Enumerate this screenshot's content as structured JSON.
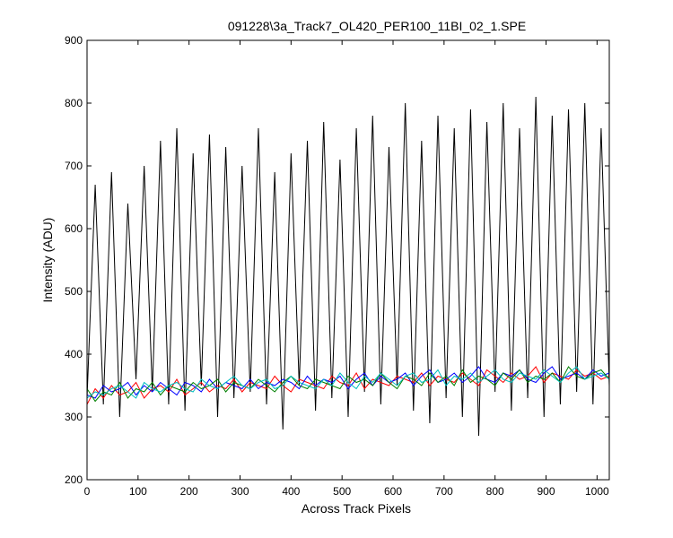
{
  "chart_data": {
    "type": "line",
    "title": "091228\\3a_Track7_OL420_PER100_11BI_02_1.SPE",
    "x_label": "Across Track Pixels",
    "y_label": "Intensity (ADU)",
    "xlim": [
      0,
      1024
    ],
    "ylim": [
      200,
      900
    ],
    "xticks": [
      0,
      100,
      200,
      300,
      400,
      500,
      600,
      700,
      800,
      900,
      1000
    ],
    "yticks": [
      200,
      300,
      400,
      500,
      600,
      700,
      800,
      900
    ],
    "grid": false,
    "x": [
      0,
      16,
      32,
      48,
      64,
      80,
      96,
      112,
      128,
      144,
      160,
      176,
      192,
      208,
      224,
      240,
      256,
      272,
      288,
      304,
      320,
      336,
      352,
      368,
      384,
      400,
      416,
      432,
      448,
      464,
      480,
      496,
      512,
      528,
      544,
      560,
      576,
      592,
      608,
      624,
      640,
      656,
      672,
      688,
      704,
      720,
      736,
      752,
      768,
      784,
      800,
      816,
      832,
      848,
      864,
      880,
      896,
      912,
      928,
      944,
      960,
      976,
      992,
      1008,
      1024
    ],
    "series": [
      {
        "color": "#000000",
        "values": [
          330,
          670,
          320,
          690,
          300,
          640,
          360,
          700,
          340,
          740,
          320,
          760,
          310,
          720,
          350,
          750,
          300,
          730,
          330,
          700,
          340,
          760,
          320,
          690,
          280,
          720,
          350,
          740,
          310,
          770,
          330,
          710,
          300,
          760,
          340,
          780,
          320,
          730,
          350,
          800,
          310,
          740,
          290,
          780,
          330,
          760,
          300,
          790,
          270,
          770,
          340,
          800,
          310,
          760,
          330,
          810,
          300,
          780,
          320,
          790,
          340,
          800,
          320,
          760,
          350
        ]
      },
      {
        "color": "#ff0000",
        "values": [
          320,
          345,
          330,
          350,
          335,
          340,
          355,
          330,
          345,
          350,
          340,
          360,
          335,
          345,
          355,
          340,
          350,
          345,
          360,
          340,
          355,
          350,
          345,
          365,
          350,
          340,
          360,
          355,
          350,
          345,
          365,
          355,
          350,
          370,
          345,
          360,
          355,
          350,
          365,
          360,
          355,
          370,
          350,
          365,
          360,
          355,
          370,
          360,
          350,
          375,
          365,
          355,
          370,
          360,
          365,
          380,
          355,
          370,
          365,
          360,
          375,
          365,
          370,
          360,
          365
        ]
      },
      {
        "color": "#0000ff",
        "values": [
          335,
          330,
          350,
          340,
          345,
          355,
          335,
          350,
          340,
          355,
          345,
          335,
          355,
          350,
          340,
          360,
          345,
          355,
          350,
          345,
          360,
          345,
          355,
          350,
          360,
          355,
          345,
          365,
          350,
          360,
          355,
          365,
          345,
          360,
          370,
          350,
          365,
          355,
          360,
          370,
          350,
          365,
          375,
          355,
          360,
          370,
          355,
          365,
          380,
          360,
          355,
          370,
          365,
          375,
          360,
          355,
          370,
          380,
          360,
          365,
          370,
          360,
          375,
          365,
          370
        ]
      },
      {
        "color": "#008000",
        "values": [
          345,
          325,
          340,
          335,
          355,
          330,
          345,
          340,
          355,
          335,
          350,
          345,
          340,
          355,
          345,
          350,
          360,
          340,
          355,
          350,
          345,
          360,
          350,
          340,
          355,
          365,
          350,
          345,
          360,
          355,
          350,
          345,
          365,
          355,
          360,
          350,
          370,
          355,
          345,
          365,
          360,
          350,
          370,
          355,
          365,
          350,
          375,
          355,
          365,
          360,
          350,
          370,
          360,
          375,
          355,
          365,
          360,
          370,
          355,
          380,
          365,
          360,
          370,
          375,
          360
        ]
      },
      {
        "color": "#00bfbf",
        "values": [
          330,
          340,
          335,
          345,
          350,
          340,
          330,
          355,
          345,
          340,
          350,
          355,
          345,
          340,
          360,
          350,
          345,
          355,
          365,
          350,
          345,
          355,
          360,
          345,
          350,
          365,
          355,
          350,
          345,
          360,
          350,
          370,
          355,
          345,
          365,
          355,
          370,
          360,
          350,
          365,
          370,
          355,
          360,
          375,
          350,
          365,
          360,
          370,
          355,
          365,
          375,
          360,
          355,
          370,
          365,
          360,
          375,
          365,
          355,
          370,
          380,
          360,
          365,
          370,
          360
        ]
      }
    ]
  }
}
